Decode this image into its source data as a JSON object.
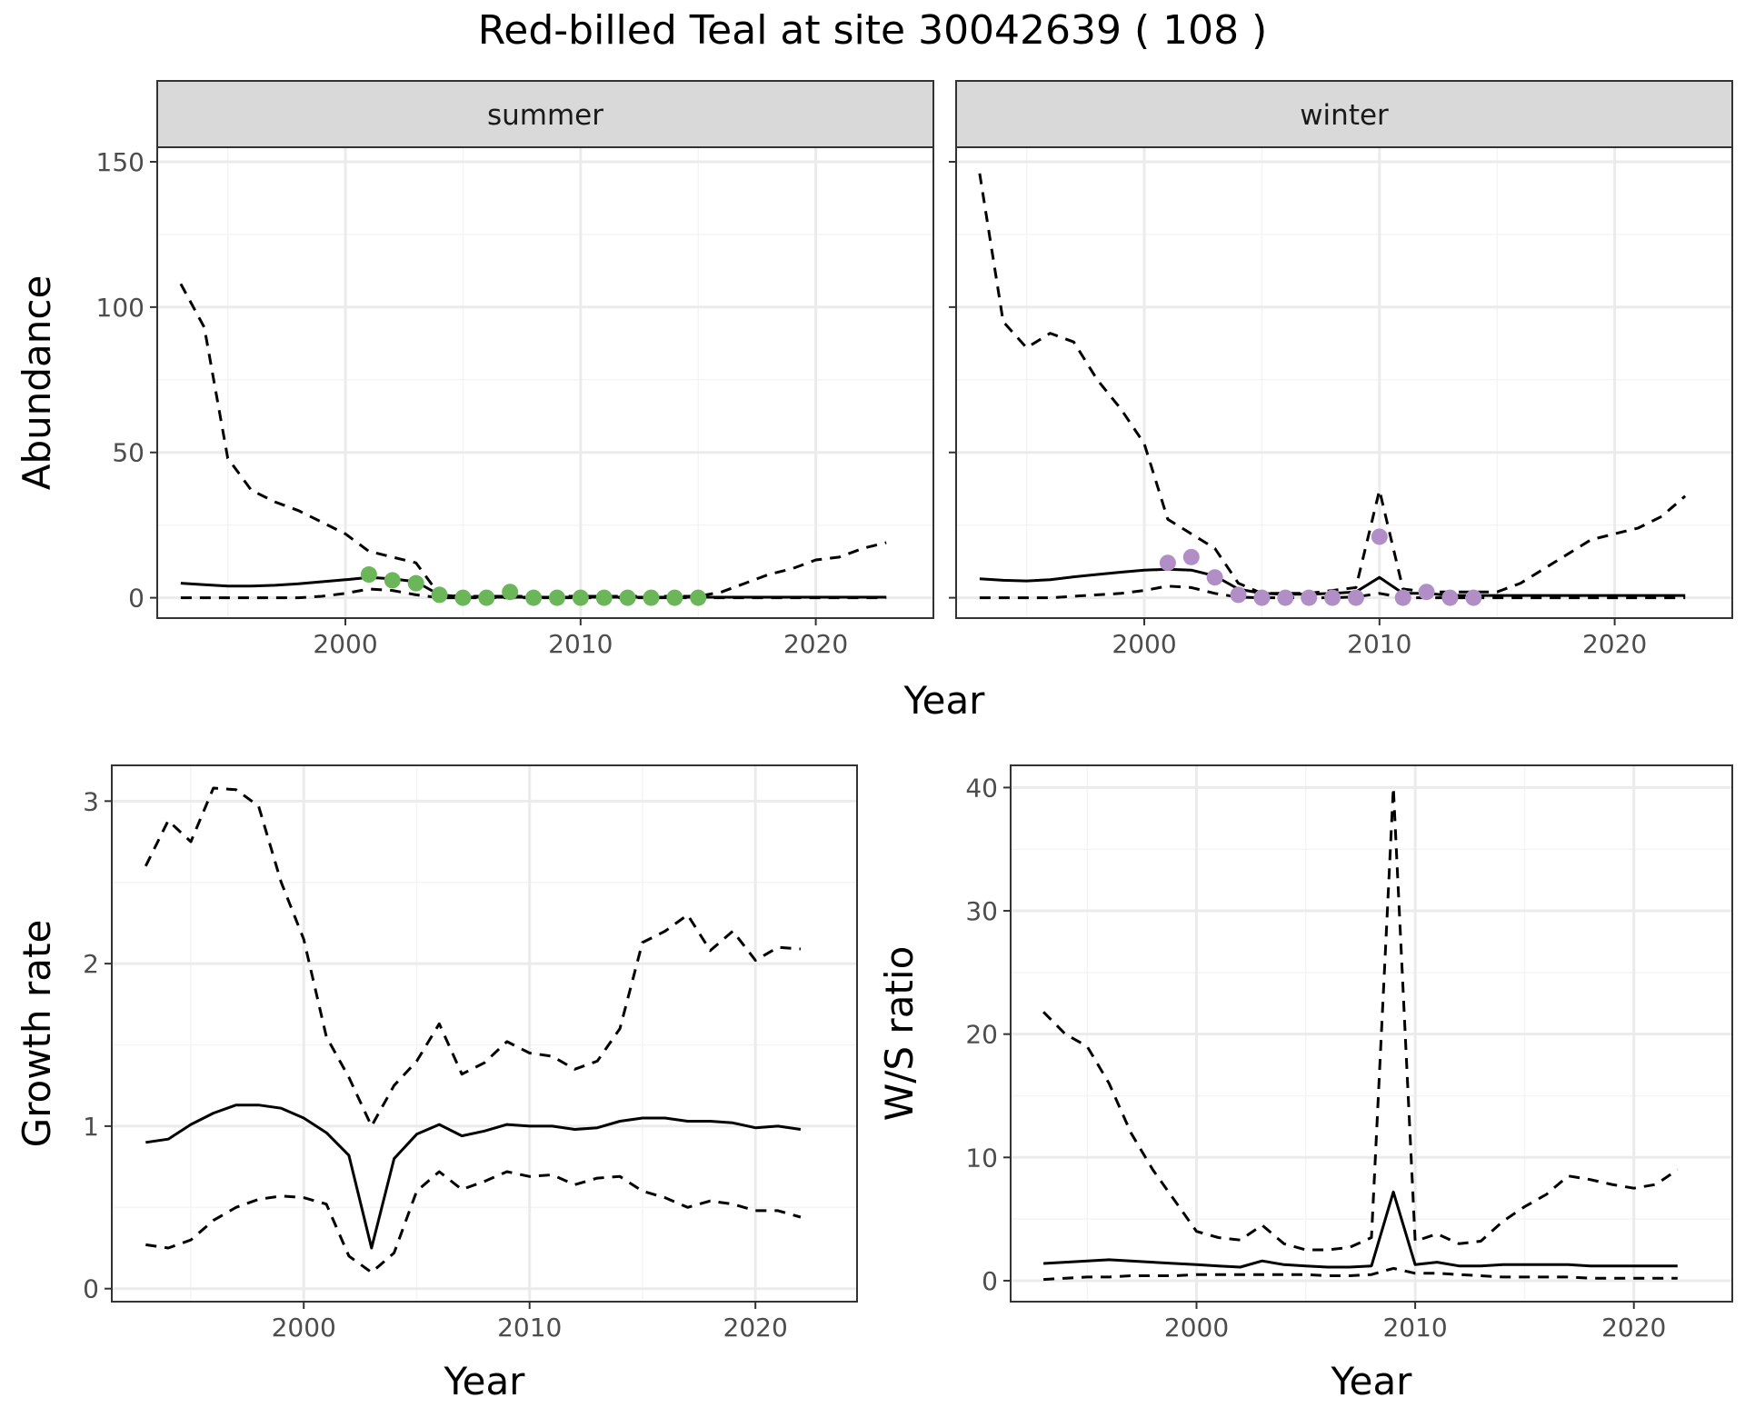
{
  "title": "Red-billed Teal at site 30042639 ( 108 )",
  "colors": {
    "summer_points": "#6ab659",
    "winter_points": "#b28ec6",
    "line": "#000000",
    "strip_fill": "#d9d9d9",
    "grid_major": "#ebebeb",
    "grid_minor": "#f4f4f4"
  },
  "chart_data": [
    {
      "id": "abundance",
      "type": "line",
      "facets": [
        "summer",
        "winter"
      ],
      "xlabel": "Year",
      "ylabel": "Abundance",
      "xlim": [
        1992,
        2025
      ],
      "ylim": [
        -7,
        155
      ],
      "xticks": [
        2000,
        2010,
        2020
      ],
      "yticks": [
        0,
        50,
        100,
        150
      ],
      "grid": true,
      "line_styles": {
        "estimate": "solid",
        "lower": "dashed",
        "upper": "dashed"
      },
      "panels": [
        {
          "strip": "summer",
          "estimate": {
            "x": [
              1993,
              1994,
              1995,
              1996,
              1997,
              1998,
              1999,
              2000,
              2001,
              2002,
              2003,
              2004,
              2005,
              2006,
              2007,
              2008,
              2009,
              2010,
              2011,
              2012,
              2013,
              2014,
              2015,
              2016,
              2017,
              2018,
              2019,
              2020,
              2021,
              2022,
              2023
            ],
            "y": [
              5,
              4.5,
              4,
              4,
              4.3,
              4.8,
              5.5,
              6.2,
              7,
              6.5,
              5.5,
              1,
              0.3,
              0.2,
              0.2,
              0.2,
              0.2,
              0.2,
              0.2,
              0.2,
              0.2,
              0.2,
              0.2,
              0.2,
              0.2,
              0.2,
              0.2,
              0.2,
              0.2,
              0.2,
              0.2
            ]
          },
          "upper": {
            "x": [
              1993,
              1994,
              1995,
              1996,
              1997,
              1998,
              1999,
              2000,
              2001,
              2002,
              2003,
              2004,
              2005,
              2006,
              2007,
              2008,
              2009,
              2010,
              2011,
              2012,
              2013,
              2014,
              2015,
              2016,
              2017,
              2018,
              2019,
              2020,
              2021,
              2022,
              2023
            ],
            "y": [
              108,
              93,
              48,
              37,
              33,
              30,
              26,
              22,
              16,
              14,
              12,
              1,
              0.5,
              0.5,
              0.5,
              0.5,
              0.5,
              0.5,
              0.5,
              0.5,
              0.5,
              0.5,
              0.5,
              2,
              5,
              8,
              10,
              13,
              14,
              17,
              19
            ]
          },
          "lower": {
            "x": [
              1993,
              1994,
              1995,
              1996,
              1997,
              1998,
              1999,
              2000,
              2001,
              2002,
              2003,
              2004,
              2005,
              2006,
              2007,
              2008,
              2009,
              2010,
              2011,
              2012,
              2013,
              2014,
              2015,
              2016,
              2017,
              2018,
              2019,
              2020,
              2021,
              2022,
              2023
            ],
            "y": [
              0,
              0,
              0,
              0,
              0,
              0,
              0.5,
              1.5,
              3,
              2.5,
              1,
              0,
              0,
              0,
              0,
              0,
              0,
              0,
              0,
              0,
              0,
              0,
              0,
              0,
              0,
              0,
              0,
              0,
              0,
              0,
              0
            ]
          },
          "observed": {
            "x": [
              2001,
              2002,
              2003,
              2004,
              2005,
              2006,
              2007,
              2008,
              2009,
              2010,
              2011,
              2012,
              2013,
              2014,
              2015
            ],
            "y": [
              8,
              6,
              5,
              1,
              0,
              0,
              2,
              0,
              0,
              0,
              0,
              0,
              0,
              0,
              0
            ]
          }
        },
        {
          "strip": "winter",
          "estimate": {
            "x": [
              1993,
              1994,
              1995,
              1996,
              1997,
              1998,
              1999,
              2000,
              2001,
              2002,
              2003,
              2004,
              2005,
              2006,
              2007,
              2008,
              2009,
              2010,
              2011,
              2012,
              2013,
              2014,
              2015,
              2016,
              2017,
              2018,
              2019,
              2020,
              2021,
              2022,
              2023
            ],
            "y": [
              6.5,
              6,
              5.8,
              6.2,
              7.2,
              8,
              8.8,
              9.5,
              9.8,
              9.5,
              7.5,
              3,
              1.5,
              1.2,
              1.2,
              1.5,
              2,
              7,
              1.5,
              1.5,
              0.8,
              0.8,
              0.8,
              0.8,
              0.8,
              0.8,
              0.8,
              0.8,
              0.8,
              0.8,
              0.8
            ]
          },
          "upper": {
            "x": [
              1993,
              1994,
              1995,
              1996,
              1997,
              1998,
              1999,
              2000,
              2001,
              2002,
              2003,
              2004,
              2005,
              2006,
              2007,
              2008,
              2009,
              2010,
              2011,
              2012,
              2013,
              2014,
              2015,
              2016,
              2017,
              2018,
              2019,
              2020,
              2021,
              2022,
              2023
            ],
            "y": [
              146,
              95,
              86,
              91,
              88,
              75,
              65,
              53,
              27,
              22,
              17,
              5,
              1.5,
              1.5,
              1.5,
              2.5,
              3.5,
              37,
              3,
              2,
              2,
              2,
              2,
              5,
              10,
              15,
              20,
              22,
              24,
              28,
              35
            ]
          },
          "lower": {
            "x": [
              1993,
              1994,
              1995,
              1996,
              1997,
              1998,
              1999,
              2000,
              2001,
              2002,
              2003,
              2004,
              2005,
              2006,
              2007,
              2008,
              2009,
              2010,
              2011,
              2012,
              2013,
              2014,
              2015,
              2016,
              2017,
              2018,
              2019,
              2020,
              2021,
              2022,
              2023
            ],
            "y": [
              0,
              0,
              0,
              0,
              0.5,
              1,
              1.5,
              2.5,
              4,
              3.5,
              1.5,
              0.2,
              0,
              0,
              0,
              0,
              0.3,
              1.5,
              0,
              0,
              0,
              0,
              0,
              0,
              0,
              0,
              0,
              0,
              0,
              0,
              0
            ]
          },
          "observed": {
            "x": [
              2001,
              2002,
              2003,
              2004,
              2005,
              2006,
              2007,
              2008,
              2009,
              2010,
              2011,
              2012,
              2013,
              2014
            ],
            "y": [
              12,
              14,
              7,
              1,
              0,
              0,
              0,
              0,
              0,
              21,
              0,
              2,
              0,
              0
            ]
          }
        }
      ]
    },
    {
      "id": "growth",
      "type": "line",
      "xlabel": "Year",
      "ylabel": "Growth rate",
      "xlim": [
        1991.5,
        2024.5
      ],
      "ylim": [
        -0.08,
        3.22
      ],
      "xticks": [
        2000,
        2010,
        2020
      ],
      "yticks": [
        0,
        1,
        2,
        3
      ],
      "grid": true,
      "estimate": {
        "x": [
          1993,
          1994,
          1995,
          1996,
          1997,
          1998,
          1999,
          2000,
          2001,
          2002,
          2003,
          2004,
          2005,
          2006,
          2007,
          2008,
          2009,
          2010,
          2011,
          2012,
          2013,
          2014,
          2015,
          2016,
          2017,
          2018,
          2019,
          2020,
          2021,
          2022
        ],
        "y": [
          0.9,
          0.92,
          1.01,
          1.08,
          1.13,
          1.13,
          1.11,
          1.05,
          0.96,
          0.82,
          0.25,
          0.8,
          0.95,
          1.01,
          0.94,
          0.97,
          1.01,
          1.0,
          1.0,
          0.98,
          0.99,
          1.03,
          1.05,
          1.05,
          1.03,
          1.03,
          1.02,
          0.99,
          1.0,
          0.98
        ]
      },
      "upper": {
        "x": [
          1993,
          1994,
          1995,
          1996,
          1997,
          1998,
          1999,
          2000,
          2001,
          2002,
          2003,
          2004,
          2005,
          2006,
          2007,
          2008,
          2009,
          2010,
          2011,
          2012,
          2013,
          2014,
          2015,
          2016,
          2017,
          2018,
          2019,
          2020,
          2021,
          2022
        ],
        "y": [
          2.6,
          2.88,
          2.75,
          3.08,
          3.07,
          2.97,
          2.5,
          2.15,
          1.55,
          1.3,
          1.0,
          1.25,
          1.4,
          1.63,
          1.32,
          1.39,
          1.52,
          1.45,
          1.43,
          1.35,
          1.4,
          1.6,
          2.13,
          2.2,
          2.3,
          2.08,
          2.2,
          2.02,
          2.1,
          2.09
        ]
      },
      "lower": {
        "x": [
          1993,
          1994,
          1995,
          1996,
          1997,
          1998,
          1999,
          2000,
          2001,
          2002,
          2003,
          2004,
          2005,
          2006,
          2007,
          2008,
          2009,
          2010,
          2011,
          2012,
          2013,
          2014,
          2015,
          2016,
          2017,
          2018,
          2019,
          2020,
          2021,
          2022
        ],
        "y": [
          0.27,
          0.25,
          0.3,
          0.42,
          0.5,
          0.55,
          0.57,
          0.56,
          0.52,
          0.2,
          0.1,
          0.22,
          0.6,
          0.72,
          0.61,
          0.66,
          0.72,
          0.69,
          0.7,
          0.64,
          0.68,
          0.69,
          0.6,
          0.56,
          0.5,
          0.54,
          0.52,
          0.48,
          0.48,
          0.44
        ]
      }
    },
    {
      "id": "ratio",
      "type": "line",
      "xlabel": "Year",
      "ylabel": "W/S ratio",
      "xlim": [
        1991.5,
        2024.5
      ],
      "ylim": [
        -1.7,
        41.8
      ],
      "xticks": [
        2000,
        2010,
        2020
      ],
      "yticks": [
        0,
        10,
        20,
        30,
        40
      ],
      "grid": true,
      "estimate": {
        "x": [
          1993,
          1994,
          1995,
          1996,
          1997,
          1998,
          1999,
          2000,
          2001,
          2002,
          2003,
          2004,
          2005,
          2006,
          2007,
          2008,
          2009,
          2010,
          2011,
          2012,
          2013,
          2014,
          2015,
          2016,
          2017,
          2018,
          2019,
          2020,
          2021,
          2022
        ],
        "y": [
          1.4,
          1.5,
          1.6,
          1.7,
          1.6,
          1.5,
          1.4,
          1.3,
          1.2,
          1.1,
          1.6,
          1.3,
          1.2,
          1.1,
          1.1,
          1.2,
          7.2,
          1.3,
          1.5,
          1.2,
          1.2,
          1.3,
          1.3,
          1.3,
          1.3,
          1.2,
          1.2,
          1.2,
          1.2,
          1.2
        ]
      },
      "upper": {
        "x": [
          1993,
          1994,
          1995,
          1996,
          1997,
          1998,
          1999,
          2000,
          2001,
          2002,
          2003,
          2004,
          2005,
          2006,
          2007,
          2008,
          2009,
          2010,
          2011,
          2012,
          2013,
          2014,
          2015,
          2016,
          2017,
          2018,
          2019,
          2020,
          2021,
          2022
        ],
        "y": [
          21.8,
          20,
          19,
          16,
          12,
          9,
          6.5,
          4,
          3.5,
          3.3,
          4.5,
          3,
          2.5,
          2.5,
          2.7,
          3.5,
          40,
          3.2,
          3.8,
          3,
          3.2,
          4.8,
          6,
          7,
          8.5,
          8.2,
          7.8,
          7.5,
          7.8,
          9
        ]
      },
      "lower": {
        "x": [
          1993,
          1994,
          1995,
          1996,
          1997,
          1998,
          1999,
          2000,
          2001,
          2002,
          2003,
          2004,
          2005,
          2006,
          2007,
          2008,
          2009,
          2010,
          2011,
          2012,
          2013,
          2014,
          2015,
          2016,
          2017,
          2018,
          2019,
          2020,
          2021,
          2022
        ],
        "y": [
          0.1,
          0.2,
          0.3,
          0.3,
          0.4,
          0.4,
          0.4,
          0.5,
          0.5,
          0.5,
          0.5,
          0.5,
          0.5,
          0.4,
          0.4,
          0.5,
          1.0,
          0.6,
          0.6,
          0.5,
          0.4,
          0.3,
          0.3,
          0.3,
          0.3,
          0.2,
          0.2,
          0.2,
          0.2,
          0.2
        ]
      }
    }
  ]
}
